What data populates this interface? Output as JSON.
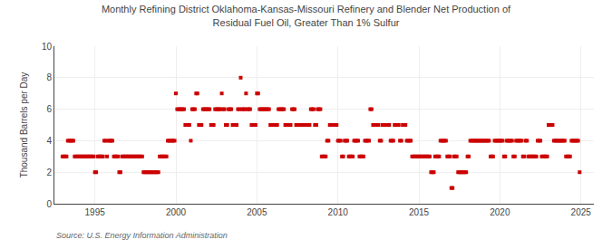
{
  "chart_data": {
    "type": "scatter",
    "title": "Monthly Refining District Oklahoma-Kansas-Missouri Refinery and Blender Net Production of\nResidual Fuel Oil, Greater Than 1% Sulfur",
    "ylabel": "Thousand Barrels per Day",
    "annotations": [
      "Source: U.S. Energy Information Administration"
    ],
    "color": "#cc0000",
    "marker": "square",
    "grid": true,
    "xlim": [
      1992.5,
      2025.8
    ],
    "xticks": [
      1995,
      2000,
      2005,
      2010,
      2015,
      2020,
      2025
    ],
    "ylim": [
      0,
      10
    ],
    "yticks": [
      0,
      2,
      4,
      6,
      8,
      10
    ],
    "x": [
      1993.0,
      1993.08,
      1993.17,
      1993.25,
      1993.33,
      1993.42,
      1993.5,
      1993.58,
      1993.67,
      1993.75,
      1993.83,
      1993.92,
      1994.0,
      1994.08,
      1994.17,
      1994.25,
      1994.33,
      1994.42,
      1994.5,
      1994.58,
      1994.67,
      1994.75,
      1994.83,
      1994.92,
      1995.0,
      1995.08,
      1995.17,
      1995.25,
      1995.33,
      1995.42,
      1995.5,
      1995.58,
      1995.67,
      1995.75,
      1995.83,
      1995.92,
      1996.0,
      1996.08,
      1996.17,
      1996.25,
      1996.33,
      1996.42,
      1996.5,
      1996.58,
      1996.67,
      1996.75,
      1996.83,
      1996.92,
      1997.0,
      1997.08,
      1997.17,
      1997.25,
      1997.33,
      1997.42,
      1997.5,
      1997.58,
      1997.67,
      1997.75,
      1997.83,
      1997.92,
      1998.0,
      1998.08,
      1998.17,
      1998.25,
      1998.33,
      1998.42,
      1998.5,
      1998.58,
      1998.67,
      1998.75,
      1998.83,
      1998.92,
      1999.0,
      1999.08,
      1999.17,
      1999.25,
      1999.33,
      1999.42,
      1999.5,
      1999.58,
      1999.67,
      1999.75,
      1999.83,
      1999.92,
      2000.0,
      2000.08,
      2000.17,
      2000.25,
      2000.33,
      2000.42,
      2000.5,
      2000.58,
      2000.67,
      2000.75,
      2000.83,
      2000.92,
      2001.0,
      2001.08,
      2001.17,
      2001.25,
      2001.33,
      2001.42,
      2001.5,
      2001.58,
      2001.67,
      2001.75,
      2001.83,
      2001.92,
      2002.0,
      2002.08,
      2002.17,
      2002.25,
      2002.33,
      2002.42,
      2002.5,
      2002.58,
      2002.67,
      2002.75,
      2002.83,
      2002.92,
      2003.0,
      2003.08,
      2003.17,
      2003.25,
      2003.33,
      2003.42,
      2003.5,
      2003.58,
      2003.67,
      2003.75,
      2003.83,
      2003.92,
      2004.0,
      2004.08,
      2004.17,
      2004.25,
      2004.33,
      2004.42,
      2004.5,
      2004.58,
      2004.67,
      2004.75,
      2004.83,
      2004.92,
      2005.0,
      2005.08,
      2005.17,
      2005.25,
      2005.33,
      2005.42,
      2005.5,
      2005.58,
      2005.67,
      2005.75,
      2005.83,
      2005.92,
      2006.0,
      2006.08,
      2006.17,
      2006.25,
      2006.33,
      2006.42,
      2006.5,
      2006.58,
      2006.67,
      2006.75,
      2006.83,
      2006.92,
      2007.0,
      2007.08,
      2007.17,
      2007.25,
      2007.33,
      2007.42,
      2007.5,
      2007.58,
      2007.67,
      2007.75,
      2007.83,
      2007.92,
      2008.0,
      2008.08,
      2008.17,
      2008.25,
      2008.33,
      2008.42,
      2008.5,
      2008.58,
      2008.67,
      2008.75,
      2008.83,
      2008.92,
      2009.0,
      2009.08,
      2009.17,
      2009.25,
      2009.33,
      2009.42,
      2009.5,
      2009.58,
      2009.67,
      2009.75,
      2009.83,
      2009.92,
      2010.0,
      2010.08,
      2010.17,
      2010.25,
      2010.33,
      2010.42,
      2010.5,
      2010.58,
      2010.67,
      2010.75,
      2010.83,
      2010.92,
      2011.0,
      2011.08,
      2011.17,
      2011.25,
      2011.33,
      2011.42,
      2011.5,
      2011.58,
      2011.67,
      2011.75,
      2011.83,
      2011.92,
      2012.0,
      2012.08,
      2012.17,
      2012.25,
      2012.33,
      2012.42,
      2012.5,
      2012.58,
      2012.67,
      2012.75,
      2012.83,
      2012.92,
      2013.0,
      2013.08,
      2013.17,
      2013.25,
      2013.33,
      2013.42,
      2013.5,
      2013.58,
      2013.67,
      2013.75,
      2013.83,
      2013.92,
      2014.0,
      2014.08,
      2014.17,
      2014.25,
      2014.33,
      2014.42,
      2014.5,
      2014.58,
      2014.67,
      2014.75,
      2014.83,
      2014.92,
      2015.0,
      2015.08,
      2015.17,
      2015.25,
      2015.33,
      2015.42,
      2015.5,
      2015.58,
      2015.67,
      2015.75,
      2015.83,
      2015.92,
      2016.0,
      2016.08,
      2016.17,
      2016.25,
      2016.33,
      2016.42,
      2016.5,
      2016.58,
      2016.67,
      2016.75,
      2016.83,
      2016.92,
      2017.0,
      2017.08,
      2017.17,
      2017.25,
      2017.33,
      2017.42,
      2017.5,
      2017.58,
      2017.67,
      2017.75,
      2017.83,
      2017.92,
      2018.0,
      2018.08,
      2018.17,
      2018.25,
      2018.33,
      2018.42,
      2018.5,
      2018.58,
      2018.67,
      2018.75,
      2018.83,
      2018.92,
      2019.0,
      2019.08,
      2019.17,
      2019.25,
      2019.33,
      2019.42,
      2019.5,
      2019.58,
      2019.67,
      2019.75,
      2019.83,
      2019.92,
      2020.0,
      2020.08,
      2020.17,
      2020.25,
      2020.33,
      2020.42,
      2020.5,
      2020.58,
      2020.67,
      2020.75,
      2020.83,
      2020.92,
      2021.0,
      2021.08,
      2021.17,
      2021.25,
      2021.33,
      2021.42,
      2021.5,
      2021.58,
      2021.67,
      2021.75,
      2021.83,
      2021.92,
      2022.0,
      2022.08,
      2022.17,
      2022.25,
      2022.33,
      2022.42,
      2022.5,
      2022.58,
      2022.67,
      2022.75,
      2022.83,
      2022.92,
      2023.0,
      2023.08,
      2023.17,
      2023.25,
      2023.33,
      2023.42,
      2023.5,
      2023.58,
      2023.67,
      2023.75,
      2023.83,
      2023.92,
      2024.0,
      2024.08,
      2024.17,
      2024.25,
      2024.33,
      2024.42,
      2024.5,
      2024.58,
      2024.67,
      2024.75,
      2024.83,
      2024.92
    ],
    "values": [
      3,
      3,
      3,
      3,
      4,
      4,
      4,
      4,
      4,
      3,
      3,
      3,
      3,
      3,
      3,
      3,
      3,
      3,
      3,
      3,
      3,
      3,
      3,
      3,
      2,
      2,
      3,
      3,
      3,
      3,
      3,
      4,
      4,
      3,
      4,
      4,
      4,
      4,
      3,
      3,
      3,
      3,
      2,
      2,
      3,
      3,
      3,
      3,
      3,
      3,
      3,
      3,
      3,
      3,
      3,
      3,
      3,
      3,
      3,
      3,
      2,
      2,
      2,
      2,
      2,
      2,
      2,
      2,
      2,
      2,
      2,
      2,
      3,
      3,
      3,
      3,
      3,
      3,
      4,
      4,
      4,
      4,
      4,
      4,
      7,
      6,
      6,
      6,
      6,
      6,
      6,
      5,
      5,
      5,
      5,
      4,
      6,
      6,
      6,
      7,
      7,
      5,
      5,
      5,
      6,
      6,
      6,
      6,
      6,
      6,
      5,
      5,
      5,
      6,
      6,
      6,
      6,
      6,
      7,
      6,
      6,
      5,
      5,
      6,
      6,
      6,
      5,
      5,
      5,
      5,
      6,
      6,
      8,
      6,
      6,
      6,
      7,
      6,
      6,
      6,
      5,
      5,
      5,
      5,
      7,
      7,
      6,
      6,
      6,
      6,
      6,
      6,
      6,
      6,
      5,
      5,
      5,
      5,
      5,
      5,
      6,
      6,
      6,
      6,
      6,
      5,
      5,
      5,
      5,
      5,
      6,
      6,
      6,
      5,
      5,
      5,
      5,
      5,
      5,
      5,
      5,
      5,
      5,
      5,
      6,
      6,
      6,
      5,
      5,
      6,
      6,
      6,
      3,
      3,
      3,
      3,
      4,
      4,
      5,
      5,
      5,
      5,
      5,
      5,
      4,
      4,
      4,
      3,
      3,
      4,
      4,
      4,
      3,
      3,
      3,
      3,
      4,
      4,
      4,
      4,
      3,
      3,
      3,
      3,
      4,
      4,
      4,
      4,
      6,
      6,
      5,
      5,
      5,
      5,
      5,
      4,
      4,
      5,
      5,
      5,
      5,
      5,
      5,
      4,
      4,
      4,
      5,
      5,
      5,
      5,
      4,
      4,
      5,
      5,
      5,
      4,
      4,
      4,
      4,
      3,
      3,
      3,
      3,
      3,
      3,
      3,
      3,
      3,
      3,
      3,
      3,
      3,
      3,
      2,
      2,
      2,
      3,
      3,
      3,
      3,
      4,
      4,
      4,
      4,
      4,
      3,
      3,
      3,
      1,
      1,
      3,
      3,
      3,
      2,
      2,
      2,
      2,
      2,
      2,
      2,
      3,
      3,
      4,
      4,
      4,
      4,
      4,
      4,
      4,
      4,
      4,
      4,
      4,
      4,
      4,
      4,
      4,
      3,
      3,
      3,
      4,
      4,
      4,
      4,
      4,
      4,
      4,
      3,
      3,
      4,
      4,
      4,
      4,
      4,
      3,
      3,
      4,
      4,
      4,
      4,
      4,
      3,
      3,
      4,
      4,
      3,
      3,
      3,
      3,
      3,
      3,
      3,
      4,
      4,
      4,
      3,
      3,
      3,
      3,
      3,
      5,
      5,
      5,
      5,
      4,
      4,
      4,
      4,
      4,
      4,
      4,
      4,
      4,
      3,
      3,
      3,
      3,
      4,
      4,
      4,
      4,
      4,
      4,
      2
    ]
  }
}
